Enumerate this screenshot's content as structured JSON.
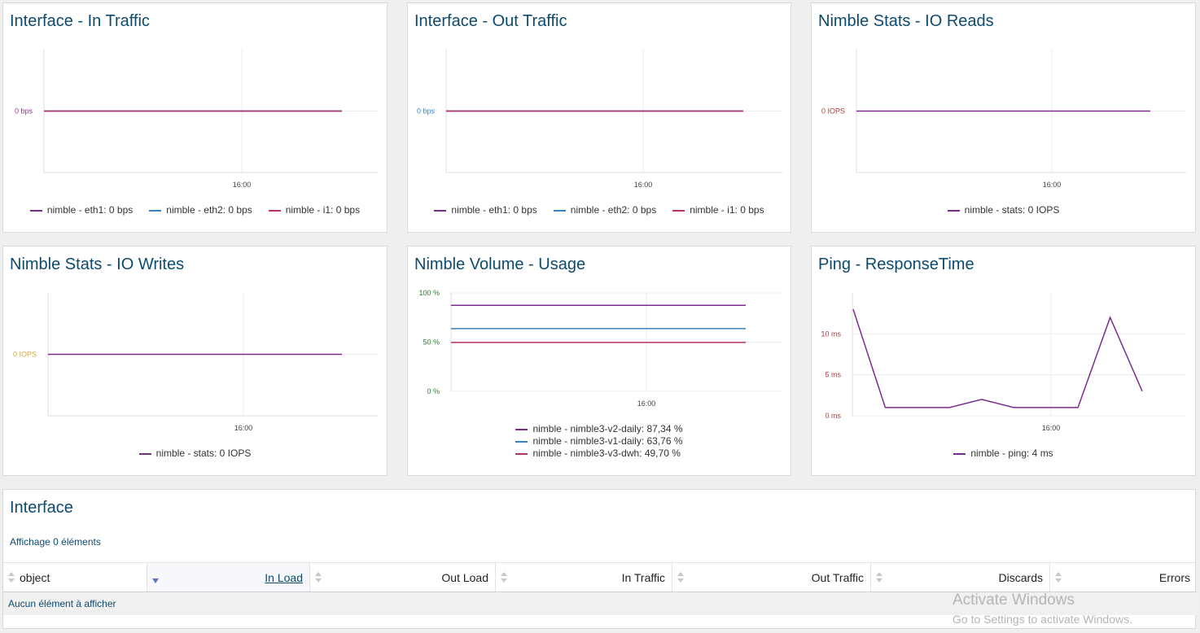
{
  "panels": [
    {
      "title": "Interface - In Traffic",
      "y_ticks": [
        "0 bps"
      ],
      "y_tick_color": "#8a3a8a",
      "x_tick": "16:00",
      "legend": [
        {
          "label": "nimble - eth1: 0 bps",
          "color": "#7b2d8e"
        },
        {
          "label": "nimble - eth2: 0 bps",
          "color": "#3a7fbf"
        },
        {
          "label": "nimble - i1: 0 bps",
          "color": "#b5336b"
        }
      ]
    },
    {
      "title": "Interface - Out Traffic",
      "y_ticks": [
        "0 bps"
      ],
      "y_tick_color": "#3a7fbf",
      "x_tick": "16:00",
      "legend": [
        {
          "label": "nimble - eth1: 0 bps",
          "color": "#7b2d8e"
        },
        {
          "label": "nimble - eth2: 0 bps",
          "color": "#3a7fbf"
        },
        {
          "label": "nimble - i1: 0 bps",
          "color": "#b5336b"
        }
      ]
    },
    {
      "title": "Nimble Stats - IO Reads",
      "y_ticks": [
        "0 IOPS"
      ],
      "y_tick_color": "#b03a3a",
      "x_tick": "16:00",
      "legend": [
        {
          "label": "nimble - stats: 0 IOPS",
          "color": "#7b2d8e"
        }
      ]
    },
    {
      "title": "Nimble Stats - IO Writes",
      "y_ticks": [
        "0 IOPS"
      ],
      "y_tick_color": "#d4a64a",
      "x_tick": "16:00",
      "legend": [
        {
          "label": "nimble - stats: 0 IOPS",
          "color": "#7b2d8e"
        }
      ]
    },
    {
      "title": "Nimble Volume - Usage",
      "y_ticks": [
        "100 %",
        "50 %",
        "0 %"
      ],
      "y_tick_color": "#2f7a3a",
      "x_tick": "16:00",
      "legend": [
        {
          "label": "nimble - nimble3-v2-daily: 87,34 %",
          "color": "#7b2d8e"
        },
        {
          "label": "nimble - nimble3-v1-daily: 63,76 %",
          "color": "#3a7fbf"
        },
        {
          "label": "nimble - nimble3-v3-dwh: 49,70 %",
          "color": "#b5336b"
        }
      ]
    },
    {
      "title": "Ping - ResponseTime",
      "y_ticks": [
        "10 ms",
        "5 ms",
        "0 ms"
      ],
      "y_tick_color": "#b03a3a",
      "x_tick": "16:00",
      "legend": [
        {
          "label": "nimble - ping: 4 ms",
          "color": "#7b2d8e"
        }
      ]
    }
  ],
  "chart_data": [
    {
      "type": "line",
      "title": "Interface - In Traffic",
      "x_tick_labels": [
        "16:00"
      ],
      "y_tick_labels": [
        "0 bps"
      ],
      "series": [
        {
          "name": "nimble - eth1",
          "values": [
            0,
            0
          ]
        },
        {
          "name": "nimble - eth2",
          "values": [
            0,
            0
          ]
        },
        {
          "name": "nimble - i1",
          "values": [
            0,
            0
          ]
        }
      ],
      "legend": "bottom"
    },
    {
      "type": "line",
      "title": "Interface - Out Traffic",
      "x_tick_labels": [
        "16:00"
      ],
      "y_tick_labels": [
        "0 bps"
      ],
      "series": [
        {
          "name": "nimble - eth1",
          "values": [
            0,
            0
          ]
        },
        {
          "name": "nimble - eth2",
          "values": [
            0,
            0
          ]
        },
        {
          "name": "nimble - i1",
          "values": [
            0,
            0
          ]
        }
      ],
      "legend": "bottom"
    },
    {
      "type": "line",
      "title": "Nimble Stats - IO Reads",
      "x_tick_labels": [
        "16:00"
      ],
      "y_tick_labels": [
        "0 IOPS"
      ],
      "series": [
        {
          "name": "nimble - stats",
          "values": [
            0,
            0
          ]
        }
      ],
      "legend": "bottom"
    },
    {
      "type": "line",
      "title": "Nimble Stats - IO Writes",
      "x_tick_labels": [
        "16:00"
      ],
      "y_tick_labels": [
        "0 IOPS"
      ],
      "series": [
        {
          "name": "nimble - stats",
          "values": [
            0,
            0
          ]
        }
      ],
      "legend": "bottom"
    },
    {
      "type": "line",
      "title": "Nimble Volume - Usage",
      "x_tick_labels": [
        "16:00"
      ],
      "y_tick_labels": [
        "100 %",
        "50 %",
        "0 %"
      ],
      "ylim": [
        0,
        100
      ],
      "series": [
        {
          "name": "nimble - nimble3-v2-daily",
          "values": [
            87.34,
            87.34
          ]
        },
        {
          "name": "nimble - nimble3-v1-daily",
          "values": [
            63.76,
            63.76
          ]
        },
        {
          "name": "nimble - nimble3-v3-dwh",
          "values": [
            49.7,
            49.7
          ]
        }
      ],
      "legend": "bottom"
    },
    {
      "type": "line",
      "title": "Ping - ResponseTime",
      "x_tick_labels": [
        "16:00"
      ],
      "y_tick_labels": [
        "10 ms",
        "5 ms",
        "0 ms"
      ],
      "ylim": [
        0,
        15
      ],
      "series": [
        {
          "name": "nimble - ping",
          "values": [
            13,
            1,
            1,
            1,
            2,
            1,
            1,
            1,
            12,
            3
          ]
        }
      ],
      "legend": "bottom"
    }
  ],
  "interface": {
    "title": "Interface",
    "info": "Affichage 0 éléments",
    "columns": [
      "object",
      "In Load",
      "Out Load",
      "In Traffic",
      "Out Traffic",
      "Discards",
      "Errors"
    ],
    "sorted_column": "In Load",
    "empty_message": "Aucun élément à afficher"
  },
  "watermark": {
    "line1": "Activate Windows",
    "line2": "Go to Settings to activate Windows."
  }
}
